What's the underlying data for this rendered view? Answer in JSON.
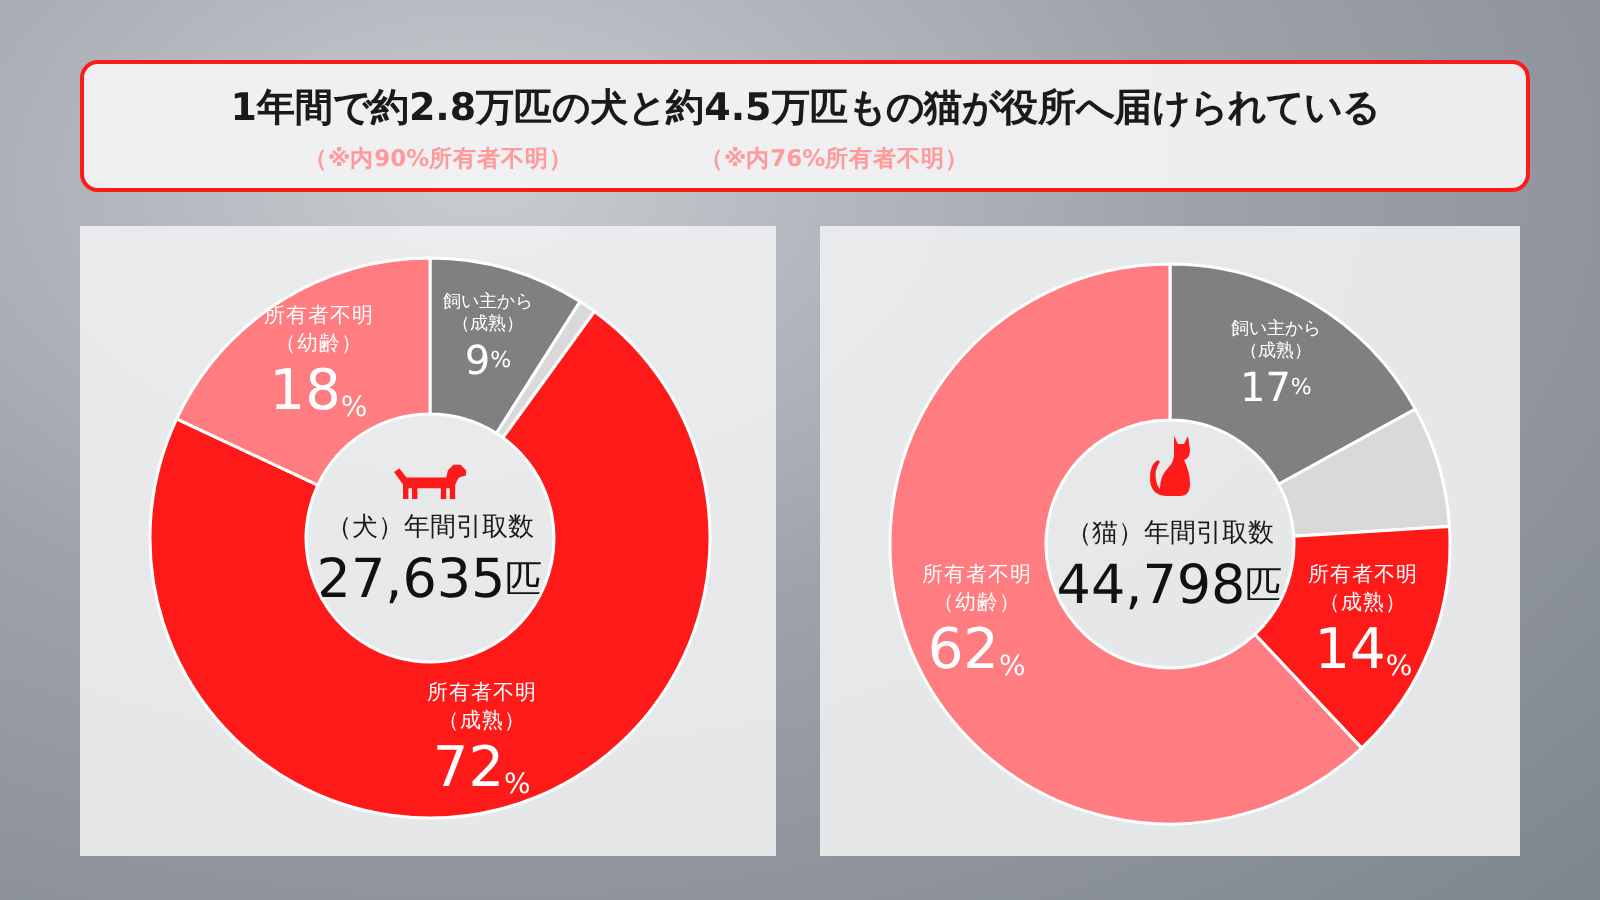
{
  "chart_data": [
    {
      "type": "other",
      "title": "1年間で約2.8万匹の犬と約4.5万匹もの猫が役所へ届けられている",
      "annotations": [
        "（※内90%所有者不明）",
        "（※内76%所有者不明）"
      ]
    },
    {
      "type": "donut",
      "title": "（犬）年間引取数",
      "subtitle": "27,635匹",
      "categories": [
        "飼い主から（成熟）",
        null,
        "所有者不明（成熟）",
        "所有者不明（幼齢）"
      ],
      "values": [
        9,
        1,
        72,
        18
      ],
      "colors": [
        "#808080",
        "#d9d9d9",
        "#ff1a1a",
        "#ff7c80"
      ],
      "value_labels": [
        "9%",
        null,
        "72%",
        "18%"
      ]
    },
    {
      "type": "donut",
      "title": "（猫）年間引取数",
      "subtitle": "44,798匹",
      "categories": [
        "飼い主から（成熟）",
        null,
        "所有者不明（成熟）",
        "所有者不明（幼齢）"
      ],
      "values": [
        17,
        7,
        14,
        62
      ],
      "colors": [
        "#808080",
        "#d9d9d9",
        "#ff1a1a",
        "#ff7c80"
      ],
      "value_labels": [
        "17%",
        null,
        "14%",
        "62%"
      ]
    }
  ]
}
